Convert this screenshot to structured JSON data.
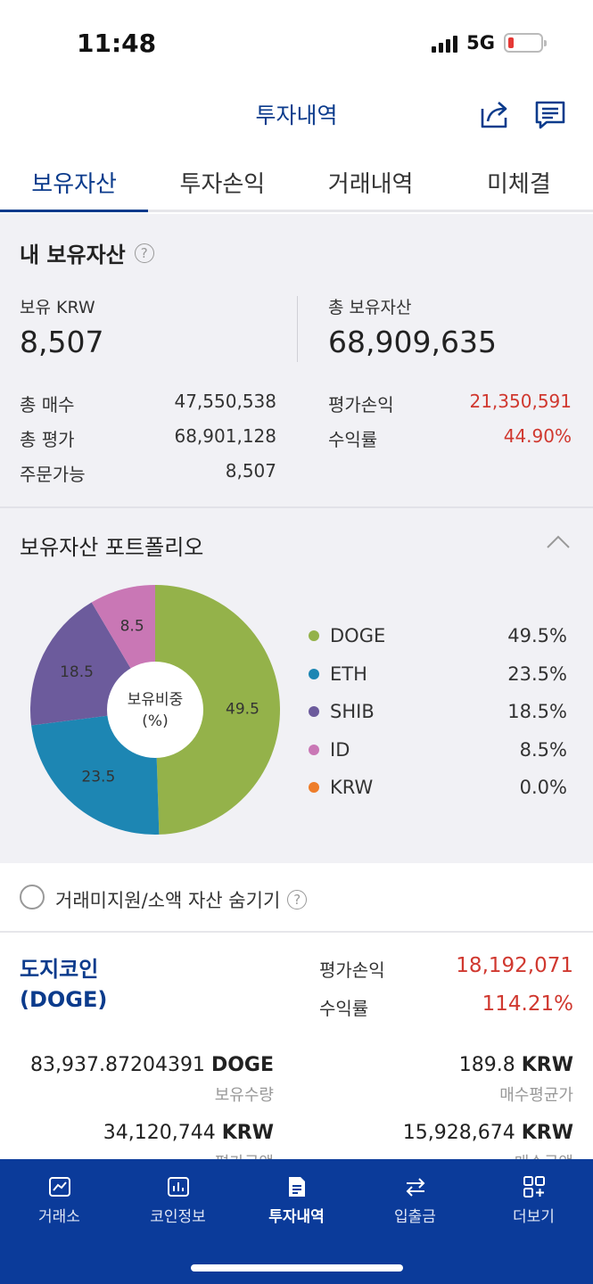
{
  "status_bar": {
    "time": "11:48",
    "network": "5G"
  },
  "header": {
    "title": "투자내역"
  },
  "tabs": [
    {
      "label": "보유자산",
      "active": true
    },
    {
      "label": "투자손익",
      "active": false
    },
    {
      "label": "거래내역",
      "active": false
    },
    {
      "label": "미체결",
      "active": false
    }
  ],
  "summary": {
    "title": "내 보유자산",
    "help": "?",
    "krw_label": "보유 KRW",
    "krw_value": "8,507",
    "total_label": "총 보유자산",
    "total_value": "68,909,635",
    "rows": {
      "buy_label": "총 매수",
      "buy_value": "47,550,538",
      "eval_label": "총 평가",
      "eval_value": "68,901,128",
      "avail_label": "주문가능",
      "avail_value": "8,507",
      "pnl_label": "평가손익",
      "pnl_value": "21,350,591",
      "rate_label": "수익률",
      "rate_value": "44.90%"
    }
  },
  "portfolio": {
    "title": "보유자산 포트폴리오",
    "center_label_1": "보유비중",
    "center_label_2": "(%)",
    "legend": [
      {
        "name": "DOGE",
        "value": "49.5%",
        "color": "#94b24a"
      },
      {
        "name": "ETH",
        "value": "23.5%",
        "color": "#1d86b3"
      },
      {
        "name": "SHIB",
        "value": "18.5%",
        "color": "#6c5b9c"
      },
      {
        "name": "ID",
        "value": "8.5%",
        "color": "#c977b5"
      },
      {
        "name": "KRW",
        "value": "0.0%",
        "color": "#ee7d2a"
      }
    ]
  },
  "chart_data": {
    "type": "pie",
    "categories": [
      "DOGE",
      "ETH",
      "SHIB",
      "ID",
      "KRW"
    ],
    "values": [
      49.5,
      23.5,
      18.5,
      8.5,
      0.0
    ],
    "colors": [
      "#94b24a",
      "#1d86b3",
      "#6c5b9c",
      "#c977b5",
      "#ee7d2a"
    ],
    "slice_labels": [
      "49.5",
      "23.5",
      "18.5",
      "8.5",
      ""
    ],
    "title": "",
    "donut": true
  },
  "filter": {
    "label": "거래미지원/소액 자산 숨기기",
    "help": "?"
  },
  "coin": {
    "name_line1": "도지코인",
    "name_line2": "(DOGE)",
    "pnl_label": "평가손익",
    "pnl_value": "18,192,071",
    "rate_label": "수익률",
    "rate_value": "114.21%",
    "qty_value": "83,937.87204391",
    "qty_unit": "DOGE",
    "qty_label": "보유수량",
    "avg_value": "189.8",
    "avg_unit": "KRW",
    "avg_label": "매수평균가",
    "eval_value": "34,120,744",
    "eval_unit": "KRW",
    "eval_label": "평가금액",
    "buy_value": "15,928,674",
    "buy_unit": "KRW",
    "buy_label": "매수금액"
  },
  "bottom_nav": [
    {
      "label": "거래소",
      "icon": "chart-area-icon",
      "active": false
    },
    {
      "label": "코인정보",
      "icon": "bar-chart-icon",
      "active": false
    },
    {
      "label": "투자내역",
      "icon": "document-icon",
      "active": true
    },
    {
      "label": "입출금",
      "icon": "transfer-icon",
      "active": false
    },
    {
      "label": "더보기",
      "icon": "grid-plus-icon",
      "active": false
    }
  ]
}
